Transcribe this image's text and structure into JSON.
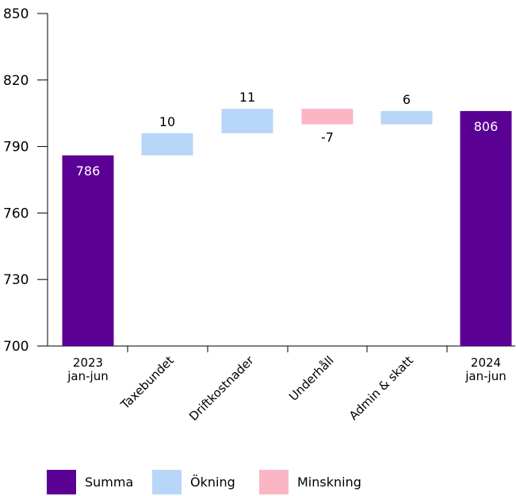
{
  "chart_data": {
    "type": "bar",
    "subtype": "waterfall",
    "categories": [
      [
        "2023",
        "jan-jun"
      ],
      [
        "Taxebundet"
      ],
      [
        "Driftkostnader"
      ],
      [
        "Underhåll"
      ],
      [
        "Admin & skatt"
      ],
      [
        "2024",
        "jan-jun"
      ]
    ],
    "bars": [
      {
        "kind": "total",
        "start": 700,
        "end": 786,
        "label": "786"
      },
      {
        "kind": "increase",
        "start": 786,
        "end": 796,
        "label": "10"
      },
      {
        "kind": "increase",
        "start": 796,
        "end": 807,
        "label": "11"
      },
      {
        "kind": "decrease",
        "start": 807,
        "end": 800,
        "label": "-7"
      },
      {
        "kind": "increase",
        "start": 800,
        "end": 806,
        "label": "6"
      },
      {
        "kind": "total",
        "start": 700,
        "end": 806,
        "label": "806"
      }
    ],
    "y_ticks": [
      "700",
      "730",
      "760",
      "790",
      "820",
      "850"
    ],
    "ylim": [
      700,
      850
    ],
    "grid": false,
    "legend": {
      "placement": "bottom-left",
      "items": [
        {
          "key": "total",
          "label": "Summa"
        },
        {
          "key": "increase",
          "label": "Ökning"
        },
        {
          "key": "decrease",
          "label": "Minskning"
        }
      ]
    },
    "colors": {
      "total": "#5b0095",
      "increase": "#b8d6f7",
      "decrease": "#fbb6c6",
      "axis": "#000000"
    }
  }
}
